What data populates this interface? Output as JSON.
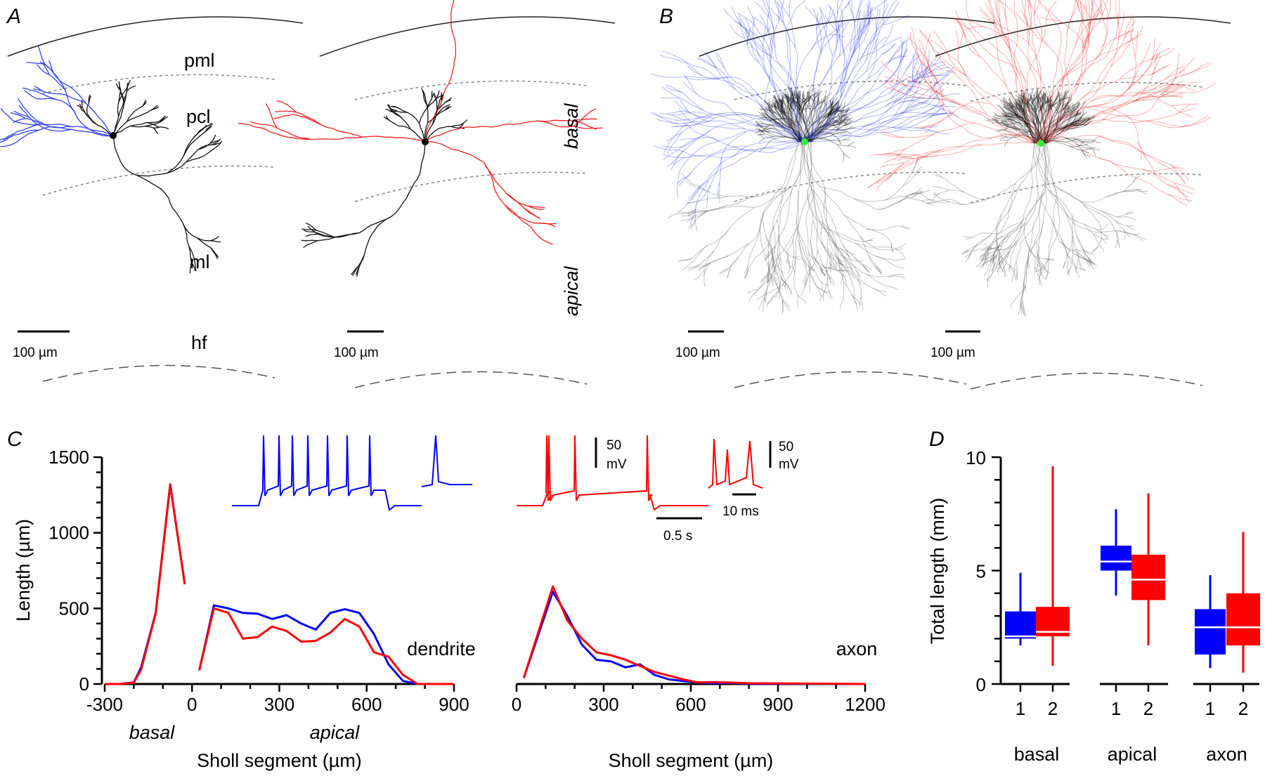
{
  "panels": {
    "a": "A",
    "b": "B",
    "c": "C",
    "d": "D"
  },
  "panel_a": {
    "layers": {
      "pml": "pml",
      "pcl": "pcl",
      "ml": "ml",
      "hf": "hf"
    },
    "compartments": {
      "basal": "basal",
      "apical": "apical"
    },
    "scale_bar": "100 µm"
  },
  "panel_b": {
    "scale_bar": "100 µm"
  },
  "insets": {
    "v_scale": "50",
    "v_unit": "mV",
    "t_scale_long": "0.5 s",
    "t_scale_short": "10 ms"
  },
  "colors": {
    "group1": "#0000ff",
    "group2": "#ff0000",
    "soma_marker": "#33ee33"
  },
  "chart_data": [
    {
      "type": "line",
      "title": "dendrite",
      "xlabel": "Sholl segment (µm)",
      "ylabel": "Length (µm)",
      "xlim": [
        -300,
        900
      ],
      "ylim": [
        0,
        1500
      ],
      "xticks": [
        -300,
        0,
        300,
        600,
        900
      ],
      "yticks": [
        0,
        500,
        1000,
        1500
      ],
      "region_labels": [
        "basal",
        "apical"
      ],
      "segments": [
        {
          "name": "basal",
          "x": [
            -300,
            -250,
            -200,
            -175,
            -125,
            -75,
            -25
          ],
          "series": [
            {
              "name": "1",
              "color": "#0000ff",
              "values": [
                0,
                0,
                10,
                110,
                470,
                1320,
                660
              ]
            },
            {
              "name": "2",
              "color": "#ff0000",
              "values": [
                0,
                0,
                8,
                95,
                465,
                1320,
                660
              ]
            }
          ]
        },
        {
          "name": "apical",
          "x": [
            25,
            75,
            125,
            175,
            225,
            275,
            325,
            375,
            425,
            475,
            525,
            575,
            625,
            675,
            725,
            775,
            825,
            875,
            900
          ],
          "series": [
            {
              "name": "1",
              "color": "#0000ff",
              "values": [
                90,
                520,
                500,
                470,
                465,
                430,
                455,
                400,
                360,
                470,
                495,
                470,
                330,
                130,
                20,
                0,
                0,
                0,
                0
              ]
            },
            {
              "name": "2",
              "color": "#ff0000",
              "values": [
                90,
                500,
                470,
                300,
                310,
                380,
                350,
                280,
                285,
                340,
                430,
                380,
                210,
                180,
                60,
                0,
                0,
                0,
                0
              ]
            }
          ]
        }
      ]
    },
    {
      "type": "line",
      "title": "axon",
      "xlabel": "Sholl segment (µm)",
      "ylabel": "",
      "xlim": [
        0,
        1200
      ],
      "ylim": [
        0,
        1500
      ],
      "xticks": [
        0,
        300,
        600,
        900,
        1200
      ],
      "x": [
        25,
        125,
        175,
        225,
        275,
        325,
        375,
        425,
        475,
        525,
        575,
        625,
        675,
        725,
        800,
        900,
        1000,
        1100,
        1200
      ],
      "series": [
        {
          "name": "1",
          "color": "#0000ff",
          "values": [
            40,
            610,
            450,
            260,
            160,
            150,
            110,
            130,
            60,
            30,
            20,
            10,
            5,
            8,
            3,
            2,
            2,
            0,
            0
          ]
        },
        {
          "name": "2",
          "color": "#ff0000",
          "values": [
            40,
            645,
            420,
            300,
            210,
            190,
            160,
            120,
            80,
            55,
            30,
            10,
            12,
            10,
            5,
            4,
            3,
            2,
            0
          ]
        }
      ]
    },
    {
      "type": "box",
      "ylabel": "Total length (mm)",
      "ylim": [
        0,
        10
      ],
      "yticks": [
        0,
        5,
        10
      ],
      "groups": [
        {
          "name": "basal",
          "boxes": [
            {
              "label": "1",
              "color": "#0000ff",
              "min": 1.7,
              "q1": 2.0,
              "median": 2.1,
              "q3": 3.2,
              "max": 4.9
            },
            {
              "label": "2",
              "color": "#ff0000",
              "min": 0.8,
              "q1": 2.1,
              "median": 2.3,
              "q3": 3.4,
              "max": 9.6
            }
          ]
        },
        {
          "name": "apical",
          "boxes": [
            {
              "label": "1",
              "color": "#0000ff",
              "min": 3.9,
              "q1": 5.0,
              "median": 5.4,
              "q3": 6.1,
              "max": 7.7
            },
            {
              "label": "2",
              "color": "#ff0000",
              "min": 1.7,
              "q1": 3.7,
              "median": 4.6,
              "q3": 5.7,
              "max": 8.4
            }
          ]
        },
        {
          "name": "axon",
          "boxes": [
            {
              "label": "1",
              "color": "#0000ff",
              "min": 0.7,
              "q1": 1.3,
              "median": 2.5,
              "q3": 3.3,
              "max": 4.8
            },
            {
              "label": "2",
              "color": "#ff0000",
              "min": 0.5,
              "q1": 1.7,
              "median": 2.5,
              "q3": 4.0,
              "max": 6.7
            }
          ]
        }
      ]
    }
  ]
}
